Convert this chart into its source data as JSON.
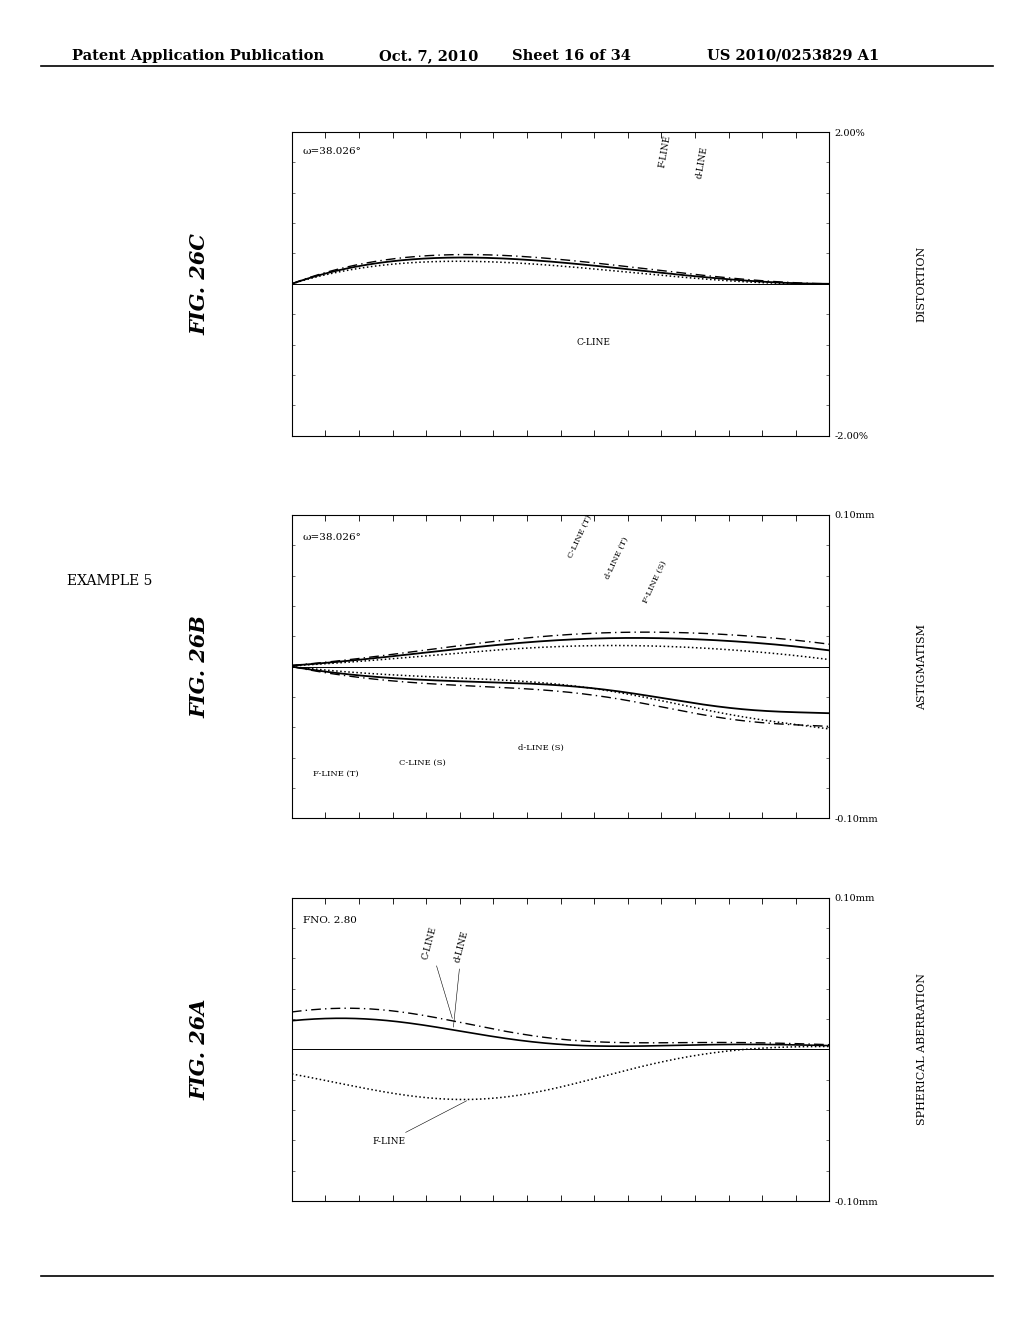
{
  "title_header": "Patent Application Publication",
  "title_date": "Oct. 7, 2010",
  "title_sheet": "Sheet 16 of 34",
  "title_patent": "US 2010/0253829 A1",
  "example_label": "EXAMPLE 5",
  "fig_26a_title": "FIG. 26A",
  "fig_26b_title": "FIG. 26B",
  "fig_26c_title": "FIG. 26C",
  "fig_26a_ylabel": "SPHERICAL ABERRATION",
  "fig_26b_ylabel": "ASTIGMATISM",
  "fig_26c_ylabel": "DISTORTION",
  "fig_26a_fno": "FNO. 2.80",
  "fig_26b_omega": "ω=38.026°",
  "fig_26c_omega": "ω=38.026°",
  "background_color": "#ffffff"
}
